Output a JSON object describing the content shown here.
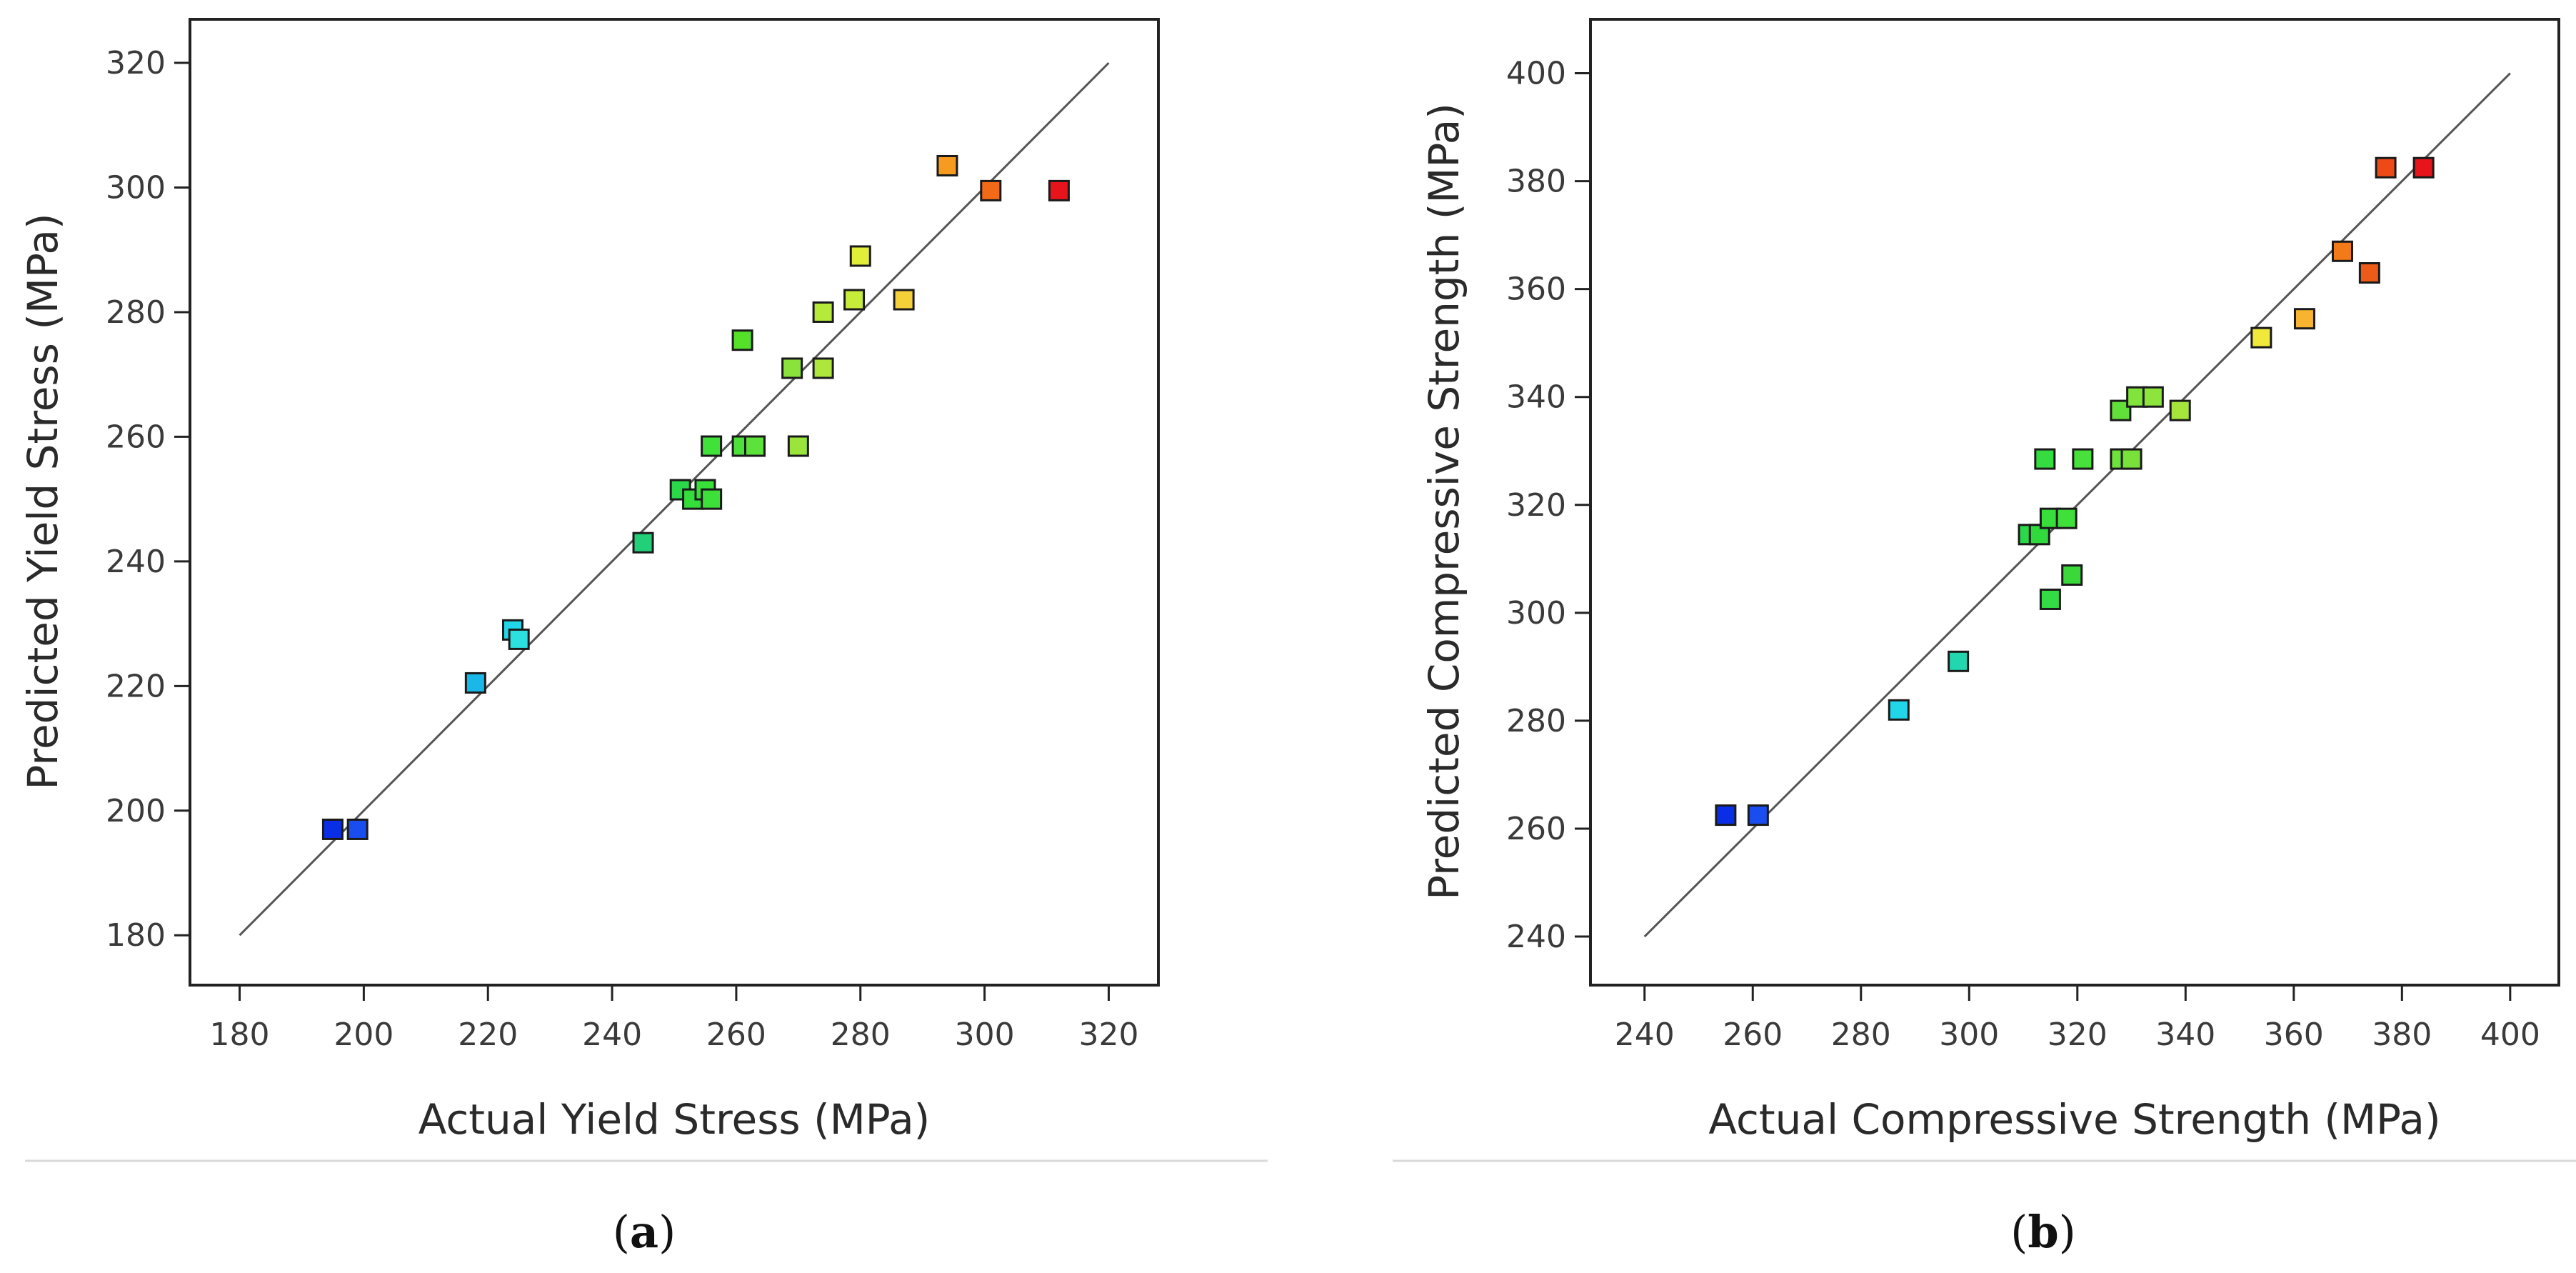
{
  "chart_data": [
    {
      "type": "scatter",
      "panel_label": "a",
      "xlabel": "Actual Yield Stress (MPa)",
      "ylabel": "Predicted Yield Stress (MPa)",
      "xlim": [
        172,
        328
      ],
      "ylim": [
        172,
        327
      ],
      "xticks": [
        180,
        200,
        220,
        240,
        260,
        280,
        300,
        320
      ],
      "yticks": [
        180,
        200,
        220,
        240,
        260,
        280,
        300,
        320
      ],
      "reference_line": [
        [
          180,
          180
        ],
        [
          320,
          320
        ]
      ],
      "points": [
        {
          "x": 195,
          "y": 197,
          "color": "#0a2ee6"
        },
        {
          "x": 199,
          "y": 197,
          "color": "#1a4df0"
        },
        {
          "x": 218,
          "y": 220.5,
          "color": "#19b8e8"
        },
        {
          "x": 224,
          "y": 229,
          "color": "#22d6ea"
        },
        {
          "x": 225,
          "y": 227.5,
          "color": "#2de0e0"
        },
        {
          "x": 245,
          "y": 243,
          "color": "#22d07a"
        },
        {
          "x": 251,
          "y": 251.5,
          "color": "#2bd84a"
        },
        {
          "x": 253,
          "y": 250,
          "color": "#33dd3a"
        },
        {
          "x": 255,
          "y": 251.5,
          "color": "#38e03a"
        },
        {
          "x": 256,
          "y": 250,
          "color": "#3ce038"
        },
        {
          "x": 256,
          "y": 258.5,
          "color": "#40e23a"
        },
        {
          "x": 261,
          "y": 275.5,
          "color": "#55e02a"
        },
        {
          "x": 261,
          "y": 258.5,
          "color": "#4de03a"
        },
        {
          "x": 263,
          "y": 258.5,
          "color": "#5ce23a"
        },
        {
          "x": 269,
          "y": 271,
          "color": "#8ae33a"
        },
        {
          "x": 270,
          "y": 258.5,
          "color": "#9ae43c"
        },
        {
          "x": 274,
          "y": 280,
          "color": "#b5ea3a"
        },
        {
          "x": 274,
          "y": 271,
          "color": "#aee63c"
        },
        {
          "x": 279,
          "y": 282,
          "color": "#c8ec3a"
        },
        {
          "x": 280,
          "y": 289,
          "color": "#e0ee3a"
        },
        {
          "x": 287,
          "y": 282,
          "color": "#f6d038"
        },
        {
          "x": 294,
          "y": 303.5,
          "color": "#f79a20"
        },
        {
          "x": 301,
          "y": 299.5,
          "color": "#f26a18"
        },
        {
          "x": 312,
          "y": 299.5,
          "color": "#e8141c"
        }
      ]
    },
    {
      "type": "scatter",
      "panel_label": "b",
      "xlabel": "Actual Compressive Strength (MPa)",
      "ylabel": "Predicted Compressive Strength (MPa)",
      "xlim": [
        230,
        409
      ],
      "ylim": [
        231,
        410
      ],
      "xticks": [
        240,
        260,
        280,
        300,
        320,
        340,
        360,
        380,
        400
      ],
      "yticks": [
        240,
        260,
        280,
        300,
        320,
        340,
        360,
        380,
        400
      ],
      "reference_line": [
        [
          240,
          240
        ],
        [
          400,
          400
        ]
      ],
      "points": [
        {
          "x": 255,
          "y": 262.5,
          "color": "#0a2ee6"
        },
        {
          "x": 261,
          "y": 262.5,
          "color": "#1a4df0"
        },
        {
          "x": 287,
          "y": 282,
          "color": "#22d6ea"
        },
        {
          "x": 298,
          "y": 291,
          "color": "#22d6b0"
        },
        {
          "x": 311,
          "y": 314.5,
          "color": "#2bd84a"
        },
        {
          "x": 313,
          "y": 314.5,
          "color": "#30da3c"
        },
        {
          "x": 314,
          "y": 328.5,
          "color": "#35dc40"
        },
        {
          "x": 315,
          "y": 317.5,
          "color": "#38de3a"
        },
        {
          "x": 315,
          "y": 302.5,
          "color": "#33dc44"
        },
        {
          "x": 318,
          "y": 317.5,
          "color": "#40e03a"
        },
        {
          "x": 319,
          "y": 307,
          "color": "#3ad838"
        },
        {
          "x": 321,
          "y": 328.5,
          "color": "#48e03a"
        },
        {
          "x": 328,
          "y": 328.5,
          "color": "#6ce23a"
        },
        {
          "x": 328,
          "y": 337.5,
          "color": "#62e03a"
        },
        {
          "x": 330,
          "y": 328.5,
          "color": "#78e23a"
        },
        {
          "x": 331,
          "y": 340,
          "color": "#80e43a"
        },
        {
          "x": 334,
          "y": 340,
          "color": "#8ce43c"
        },
        {
          "x": 339,
          "y": 337.5,
          "color": "#a6e63c"
        },
        {
          "x": 354,
          "y": 351,
          "color": "#f0e83a"
        },
        {
          "x": 362,
          "y": 354.5,
          "color": "#f6b430"
        },
        {
          "x": 369,
          "y": 367,
          "color": "#f27a18"
        },
        {
          "x": 374,
          "y": 363,
          "color": "#ee5a18"
        },
        {
          "x": 377,
          "y": 382.5,
          "color": "#ee4a18"
        },
        {
          "x": 384,
          "y": 382.5,
          "color": "#e8141c"
        }
      ]
    }
  ],
  "captions": {
    "a": {
      "open": "(",
      "letter": "a",
      "close": ")"
    },
    "b": {
      "open": "(",
      "letter": "b",
      "close": ")"
    }
  }
}
